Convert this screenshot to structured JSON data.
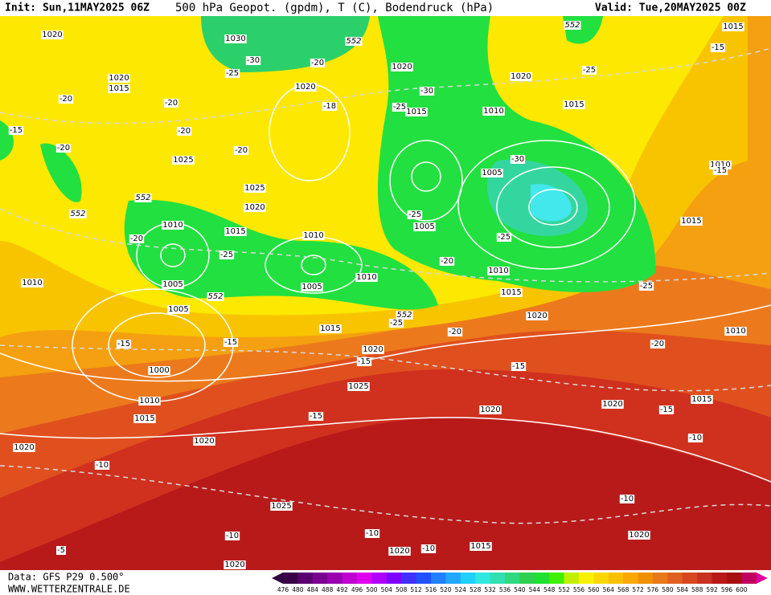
{
  "header": {
    "init": "Init: Sun,11MAY2025 06Z",
    "title": "500 hPa Geopot. (gpdm), T (C), Bodendruck (hPa)",
    "valid": "Valid: Tue,20MAY2025 00Z"
  },
  "footer": {
    "data": "Data: GFS P29 0.500°",
    "site": "WWW.WETTERZENTRALE.DE"
  },
  "colorbar": {
    "labels": [
      476,
      480,
      484,
      488,
      492,
      496,
      500,
      504,
      508,
      512,
      516,
      520,
      524,
      528,
      532,
      536,
      540,
      544,
      548,
      552,
      556,
      560,
      564,
      568,
      572,
      576,
      580,
      584,
      588,
      592,
      596,
      600
    ]
  },
  "map": {
    "pressure_labels": [
      "1020",
      "1030",
      "1020",
      "1015",
      "1020",
      "1020",
      "1020",
      "1015",
      "1010",
      "1015",
      "1015",
      "1025",
      "1005",
      "1010",
      "1025",
      "1020",
      "1005",
      "1010",
      "1015",
      "1010",
      "1015",
      "1005",
      "1005",
      "1010",
      "1010",
      "1010",
      "1015",
      "1005",
      "1015",
      "1020",
      "1010",
      "1020",
      "1000",
      "1025",
      "1010",
      "1015",
      "1020",
      "1020",
      "1015",
      "1020",
      "1020",
      "1025",
      "1020",
      "1015",
      "1020",
      "1020"
    ],
    "temperature_labels": [
      "-30",
      "-25",
      "-20",
      "-20",
      "-20",
      "-18",
      "-15",
      "-20",
      "-20",
      "-20",
      "-25",
      "-30",
      "-30",
      "-25",
      "-15",
      "-25",
      "-25",
      "-20",
      "-25",
      "-20",
      "-25",
      "-25",
      "-20",
      "-15",
      "-15",
      "-15",
      "-15",
      "-20",
      "-15",
      "-15",
      "-10",
      "-10",
      "-10",
      "-10",
      "-10",
      "-10",
      "-5",
      "-15"
    ],
    "geopotential_labels": [
      "552",
      "552",
      "552",
      "552",
      "552",
      "552"
    ]
  }
}
